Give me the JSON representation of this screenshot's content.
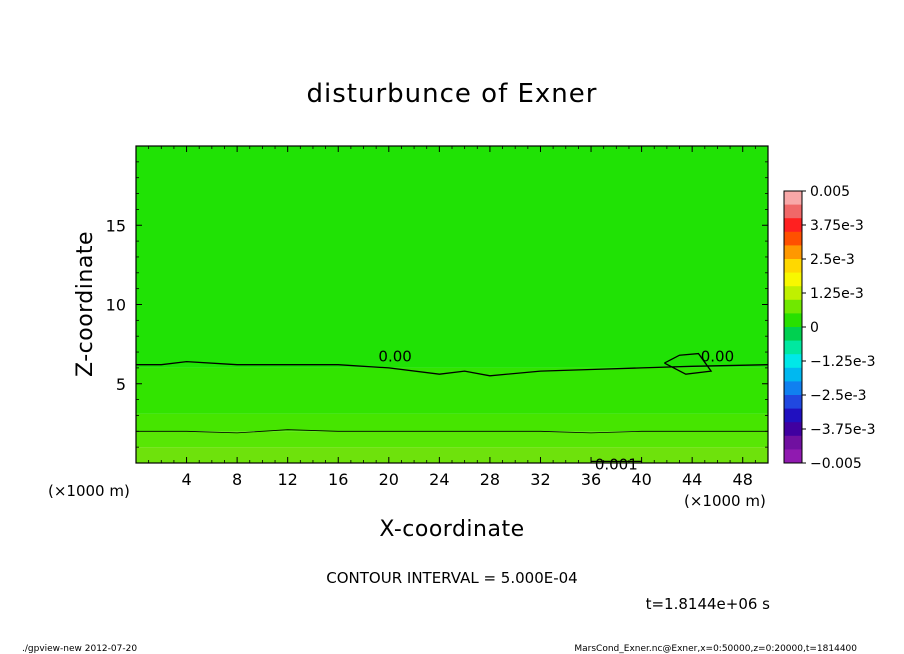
{
  "chart_data": {
    "type": "heatmap",
    "title": "disturbunce of Exner",
    "xlabel": "X-coordinate",
    "ylabel": "Z-coordinate",
    "x_unit": "(×1000 m)",
    "z_unit": "(×1000 m)",
    "xlim": [
      0,
      50
    ],
    "ylim": [
      0,
      20
    ],
    "x_ticks": [
      4,
      8,
      12,
      16,
      20,
      24,
      28,
      32,
      36,
      40,
      44,
      48
    ],
    "y_ticks": [
      5,
      10,
      15
    ],
    "grid": false,
    "contour_interval_text": "CONTOUR INTERVAL = 5.000E-04",
    "time_text": "t=1.8144e+06 s",
    "colorbar": {
      "labels": [
        "0.005",
        "3.75e-3",
        "2.5e-3",
        "1.25e-3",
        "0",
        "−1.25e-3",
        "−2.5e-3",
        "−3.75e-3",
        "−0.005"
      ],
      "levels": [
        0.005,
        0.00375,
        0.0025,
        0.00125,
        0,
        -0.00125,
        -0.0025,
        -0.00375,
        -0.005
      ],
      "colors": [
        "#f8a8a8",
        "#f06868",
        "#ff2020",
        "#ff5000",
        "#ff9800",
        "#ffd800",
        "#f8f800",
        "#c0f000",
        "#70e800",
        "#28e000",
        "#00d050",
        "#00e8a0",
        "#00e8e8",
        "#00b8f0",
        "#1080f0",
        "#2048e0",
        "#2010c0",
        "#4000a0",
        "#7010a0",
        "#901ab0"
      ]
    },
    "bands": [
      {
        "from_z": 0.0,
        "to_z": 1.0,
        "value": "0.0015 to 0.002",
        "color": "#6ee20c"
      },
      {
        "from_z": 1.0,
        "to_z": 2.0,
        "value": "0.001 to 0.0015",
        "color": "#58e605"
      },
      {
        "from_z": 2.0,
        "to_z": 3.1,
        "value": "0.0005 to 0.001",
        "color": "#46e500"
      },
      {
        "from_z": 3.1,
        "to_z": 6.0,
        "value": "0 to 0.0005",
        "color": "#32e400"
      },
      {
        "from_z": 6.0,
        "to_z": 20.0,
        "value": "-0.0005 to 0",
        "color": "#20e205"
      }
    ],
    "contours": [
      {
        "label": "0.00",
        "x": [
          0,
          2,
          4,
          8,
          12,
          16,
          20,
          24,
          26,
          28,
          32,
          36,
          40,
          44,
          50
        ],
        "z": [
          6.2,
          6.2,
          6.4,
          6.2,
          6.2,
          6.2,
          6.0,
          5.6,
          5.8,
          5.5,
          5.8,
          5.9,
          6.0,
          6.1,
          6.2
        ]
      },
      {
        "label": "0.00",
        "x": [
          41.8,
          43,
          44.5,
          45.5,
          43.5,
          41.8
        ],
        "z": [
          6.3,
          6.8,
          6.9,
          5.8,
          5.6,
          6.3
        ]
      },
      {
        "label": "",
        "x": [
          0,
          4,
          8,
          12,
          16,
          20,
          24,
          28,
          32,
          36,
          40,
          44,
          50
        ],
        "z": [
          2.0,
          2.0,
          1.9,
          2.1,
          2.0,
          2.0,
          2.0,
          2.0,
          2.0,
          1.9,
          2.0,
          2.0,
          2.0
        ]
      },
      {
        "label": "0.001",
        "x": [
          36,
          40
        ],
        "z": [
          0.1,
          0.1
        ]
      }
    ]
  },
  "footer": {
    "left": "./gpview-new   2012-07-20",
    "right": "MarsCond_Exner.nc@Exner,x=0:50000,z=0:20000,t=1814400"
  }
}
